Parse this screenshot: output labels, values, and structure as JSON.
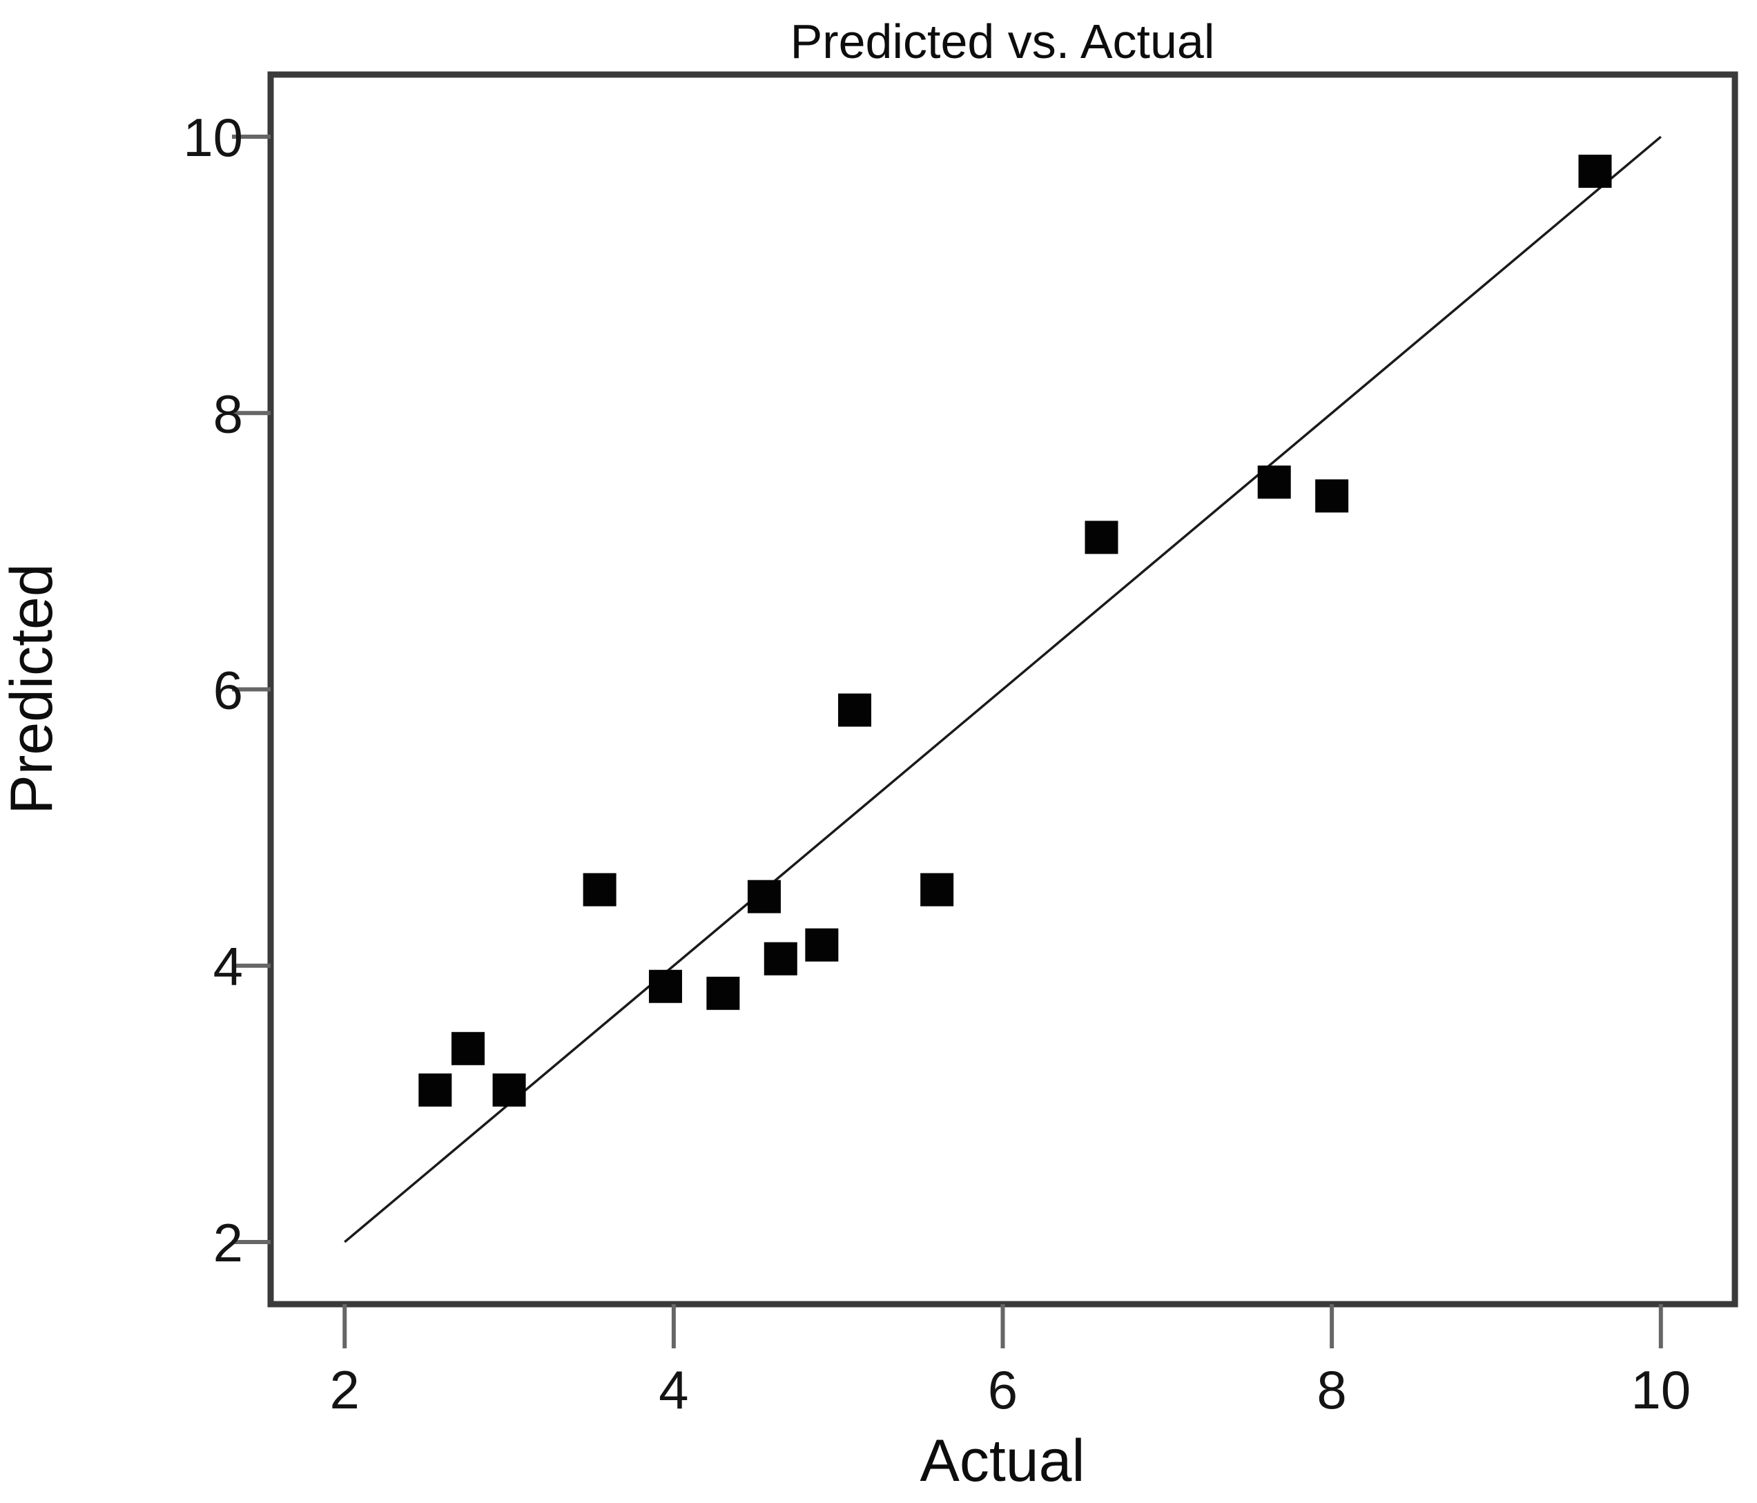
{
  "figure": {
    "title": "Predicted vs. Actual",
    "colors": {
      "background": "#ffffff",
      "frame": "#3a3a3a",
      "tick_stub": "#666666",
      "text": "#0d0d0d",
      "marker": "#030303",
      "identity_line": "#1a1a1a"
    }
  },
  "chart_data": {
    "type": "scatter",
    "title": "Predicted vs. Actual",
    "xlabel": "Actual",
    "ylabel": "Predicted",
    "xlim": [
      1.55,
      10.45
    ],
    "ylim": [
      1.55,
      10.45
    ],
    "x_ticks": [
      2,
      4,
      6,
      8,
      10
    ],
    "y_ticks": [
      2,
      4,
      6,
      8,
      10
    ],
    "grid": false,
    "legend": "none",
    "marker": "filled-square",
    "series": [
      {
        "name": "predicted-vs-actual-points",
        "kind": "scatter",
        "points": [
          [
            2.55,
            3.1
          ],
          [
            2.75,
            3.4
          ],
          [
            3.0,
            3.1
          ],
          [
            3.55,
            4.55
          ],
          [
            3.95,
            3.85
          ],
          [
            4.3,
            3.8
          ],
          [
            4.55,
            4.5
          ],
          [
            4.65,
            4.05
          ],
          [
            4.9,
            4.15
          ],
          [
            5.1,
            5.85
          ],
          [
            5.6,
            4.55
          ],
          [
            6.6,
            7.1
          ],
          [
            7.65,
            7.5
          ],
          [
            8.0,
            7.4
          ],
          [
            9.6,
            9.75
          ]
        ]
      },
      {
        "name": "identity-line",
        "kind": "line",
        "from": [
          2,
          2
        ],
        "to": [
          10,
          10
        ]
      }
    ]
  }
}
